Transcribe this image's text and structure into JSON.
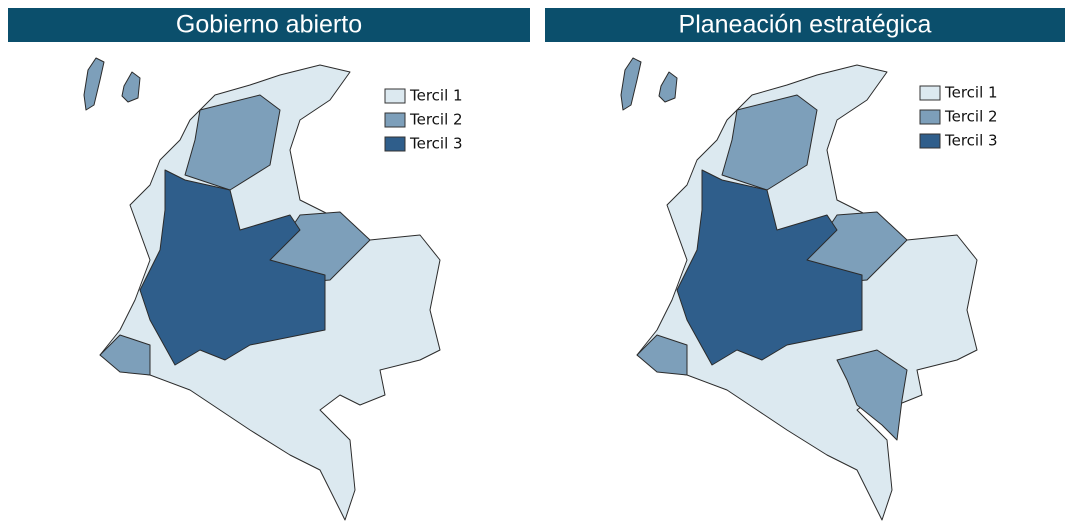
{
  "panels": [
    {
      "title": "Gobierno abierto",
      "legend": [
        "Tercil 1",
        "Tercil 2",
        "Tercil 3"
      ]
    },
    {
      "title": "Planeación estratégica",
      "legend": [
        "Tercil 1",
        "Tercil 2",
        "Tercil 3"
      ]
    }
  ]
}
